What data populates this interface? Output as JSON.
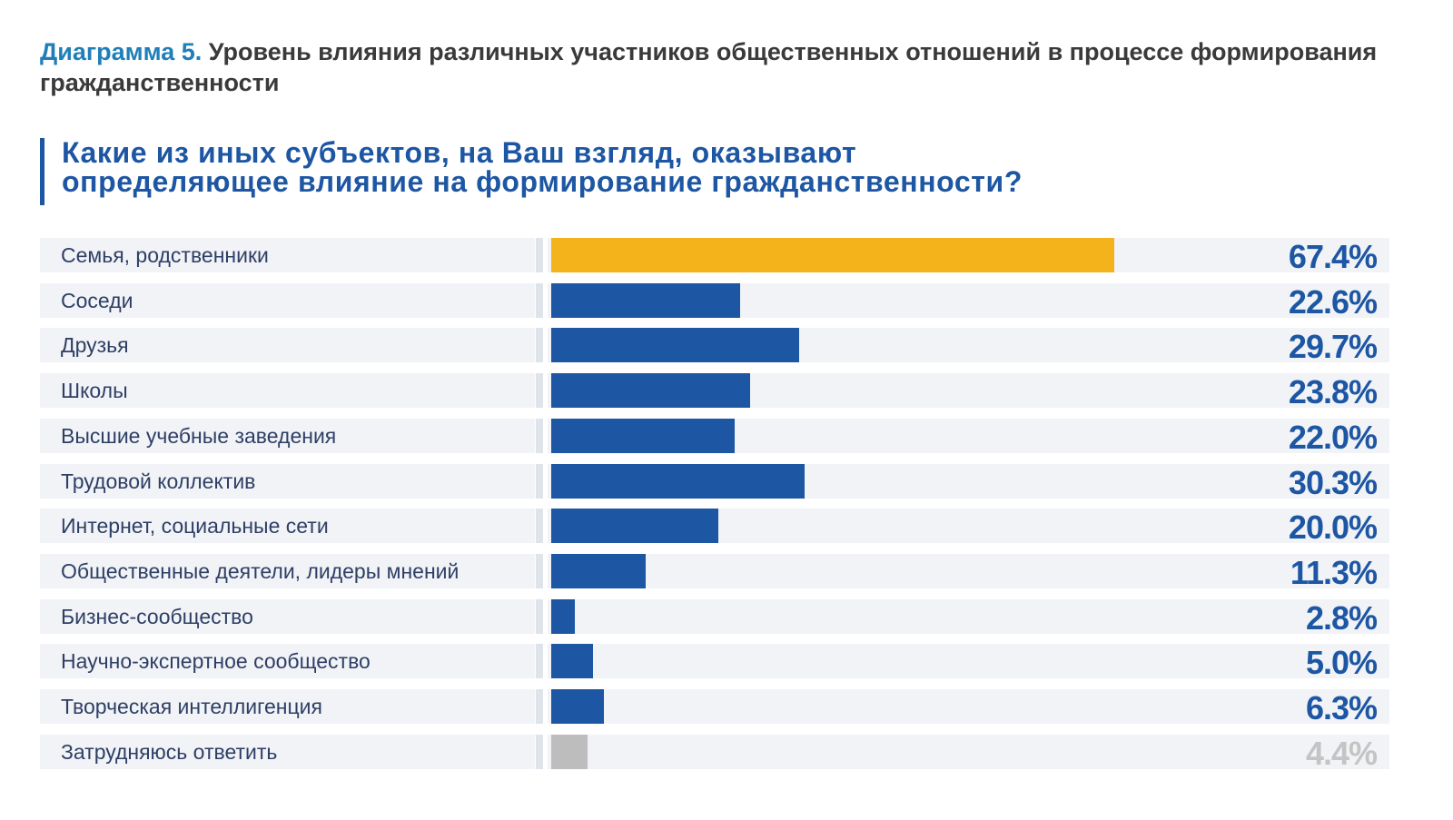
{
  "header": {
    "diagram_number": "Диаграмма 5.",
    "diagram_title": "Уровень влияния различных участников общественных отношений в процессе формирования гражданственности",
    "question_line1": "Какие из иных субъектов, на Ваш взгляд, оказывают",
    "question_line2": "определяющее влияние на формирование гражданственности?"
  },
  "colors": {
    "highlight": "#f5b31b",
    "primary": "#1d56a3",
    "neutral": "#bdbdbd",
    "value_text": "#1d56a3",
    "neutral_value_text": "#c4c4c4",
    "row_background": "#f1f3f6"
  },
  "chart_data": {
    "type": "bar",
    "orientation": "horizontal",
    "title": "Какие из иных субъектов, на Ваш взгляд, оказывают определяющее влияние на формирование гражданственности?",
    "xlim": [
      0,
      100
    ],
    "grid": false,
    "legend": "none",
    "categories": [
      "Семья, родственники",
      "Соседи",
      "Друзья",
      "Школы",
      "Высшие учебные заведения",
      "Трудовой коллектив",
      "Интернет, социальные сети",
      "Общественные деятели, лидеры мнений",
      "Бизнес-сообщество",
      "Научно-экспертное сообщество",
      "Творческая интеллигенция",
      "Затрудняюсь ответить"
    ],
    "values": [
      67.4,
      22.6,
      29.7,
      23.8,
      22.0,
      30.3,
      20.0,
      11.3,
      2.8,
      5.0,
      6.3,
      4.4
    ],
    "value_labels": [
      "67.4%",
      "22.6%",
      "29.7%",
      "23.8%",
      "22.0%",
      "30.3%",
      "20.0%",
      "11.3%",
      "2.8%",
      "5.0%",
      "6.3%",
      "4.4%"
    ],
    "bar_kinds": [
      "highlight",
      "primary",
      "primary",
      "primary",
      "primary",
      "primary",
      "primary",
      "primary",
      "primary",
      "primary",
      "primary",
      "neutral"
    ]
  }
}
